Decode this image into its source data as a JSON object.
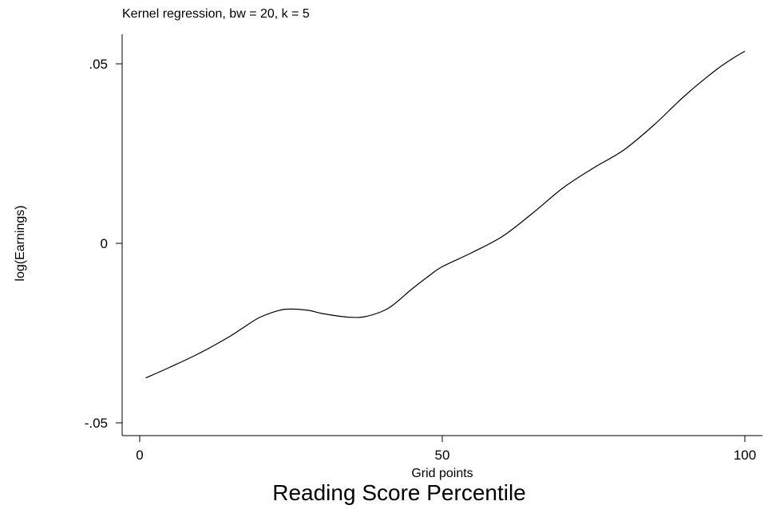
{
  "chart_data": {
    "type": "line",
    "title": "Kernel regression, bw  = 20, k = 5",
    "xlabel": "Grid points",
    "ylabel": "log(Earnings)",
    "caption": "Reading Score Percentile",
    "xlim": [
      -1,
      103
    ],
    "ylim": [
      -0.055,
      0.058
    ],
    "xticks": [
      0,
      50,
      100
    ],
    "xtick_labels": [
      "0",
      "50",
      "100"
    ],
    "yticks": [
      -0.05,
      0,
      0.05
    ],
    "ytick_labels": [
      "-.05",
      "0",
      ".05"
    ],
    "grid": false,
    "series": [
      {
        "x": [
          1,
          5,
          10,
          15,
          18,
          20,
          23,
          25,
          28,
          30,
          33,
          35,
          37,
          40,
          42,
          45,
          48,
          50,
          55,
          60,
          65,
          70,
          75,
          80,
          85,
          90,
          95,
          98,
          100
        ],
        "y": [
          -0.0375,
          -0.0345,
          -0.0305,
          -0.0258,
          -0.0225,
          -0.0205,
          -0.0187,
          -0.0183,
          -0.0187,
          -0.0195,
          -0.0203,
          -0.0206,
          -0.0205,
          -0.019,
          -0.017,
          -0.0127,
          -0.0088,
          -0.0065,
          -0.0025,
          0.002,
          0.0085,
          0.0155,
          0.021,
          0.026,
          0.033,
          0.041,
          0.048,
          0.0515,
          0.0535
        ],
        "color": "#000000"
      }
    ]
  }
}
